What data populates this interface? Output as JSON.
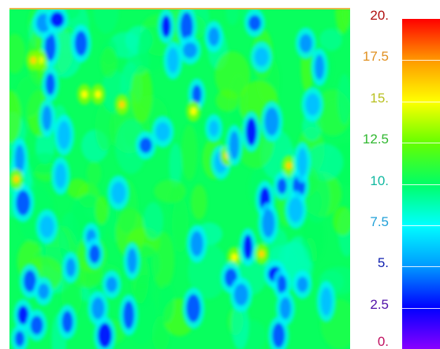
{
  "colors": {
    "background": "#ffffff",
    "top_edge": "#e6b84a",
    "base_field": "#3ee88a",
    "colormap": [
      "#8800ff",
      "#0000ff",
      "#0099ff",
      "#00ffff",
      "#00ff66",
      "#66ff00",
      "#ffff00",
      "#ff9900",
      "#ff0000"
    ]
  },
  "chart_data": {
    "type": "heatmap",
    "title": "",
    "xlabel": "",
    "ylabel": "",
    "grid": false,
    "legend": "colorbar-right",
    "colorbar": {
      "range": [
        0,
        20
      ],
      "ticks": [
        {
          "value": 20,
          "label": "20.",
          "color": "#b01010"
        },
        {
          "value": 17.5,
          "label": "17.5",
          "color": "#e09020"
        },
        {
          "value": 15,
          "label": "15.",
          "color": "#b8c020"
        },
        {
          "value": 12.5,
          "label": "12.5",
          "color": "#30b830"
        },
        {
          "value": 10,
          "label": "10.",
          "color": "#10b8a0"
        },
        {
          "value": 7.5,
          "label": "7.5",
          "color": "#20a0d8"
        },
        {
          "value": 5,
          "label": "5.",
          "color": "#1020b0"
        },
        {
          "value": 2.5,
          "label": "2.5",
          "color": "#5010a8"
        },
        {
          "value": 0,
          "label": "0.",
          "color": "#c01060"
        }
      ]
    },
    "field": {
      "base_value": 10.2,
      "low_spots_value_range": [
        2,
        6
      ],
      "high_spots_value_range": [
        14,
        17
      ],
      "spots": [
        {
          "x": 0.03,
          "y": 0.97,
          "v": 4
        },
        {
          "x": 0.04,
          "y": 0.9,
          "v": 3
        },
        {
          "x": 0.06,
          "y": 0.8,
          "v": 4
        },
        {
          "x": 0.04,
          "y": 0.57,
          "v": 4
        },
        {
          "x": 0.03,
          "y": 0.44,
          "v": 5
        },
        {
          "x": 0.1,
          "y": 0.83,
          "v": 5
        },
        {
          "x": 0.08,
          "y": 0.93,
          "v": 4
        },
        {
          "x": 0.11,
          "y": 0.64,
          "v": 6
        },
        {
          "x": 0.11,
          "y": 0.32,
          "v": 5
        },
        {
          "x": 0.12,
          "y": 0.11,
          "v": 4
        },
        {
          "x": 0.09,
          "y": 0.15,
          "v": 15
        },
        {
          "x": 0.1,
          "y": 0.04,
          "v": 5
        },
        {
          "x": 0.12,
          "y": 0.22,
          "v": 4
        },
        {
          "x": 0.15,
          "y": 0.49,
          "v": 6
        },
        {
          "x": 0.16,
          "y": 0.37,
          "v": 6
        },
        {
          "x": 0.14,
          "y": 0.03,
          "v": 3
        },
        {
          "x": 0.18,
          "y": 0.76,
          "v": 5
        },
        {
          "x": 0.17,
          "y": 0.92,
          "v": 4
        },
        {
          "x": 0.21,
          "y": 0.1,
          "v": 4
        },
        {
          "x": 0.22,
          "y": 0.25,
          "v": 15
        },
        {
          "x": 0.24,
          "y": 0.67,
          "v": 5
        },
        {
          "x": 0.25,
          "y": 0.72,
          "v": 4
        },
        {
          "x": 0.26,
          "y": 0.88,
          "v": 5
        },
        {
          "x": 0.28,
          "y": 0.96,
          "v": 3
        },
        {
          "x": 0.26,
          "y": 0.25,
          "v": 15
        },
        {
          "x": 0.3,
          "y": 0.81,
          "v": 5
        },
        {
          "x": 0.33,
          "y": 0.28,
          "v": 16
        },
        {
          "x": 0.32,
          "y": 0.54,
          "v": 6
        },
        {
          "x": 0.36,
          "y": 0.74,
          "v": 5
        },
        {
          "x": 0.35,
          "y": 0.9,
          "v": 4
        },
        {
          "x": 0.4,
          "y": 0.4,
          "v": 4
        },
        {
          "x": 0.45,
          "y": 0.36,
          "v": 6
        },
        {
          "x": 0.46,
          "y": 0.05,
          "v": 3
        },
        {
          "x": 0.48,
          "y": 0.15,
          "v": 6
        },
        {
          "x": 0.52,
          "y": 0.05,
          "v": 4
        },
        {
          "x": 0.53,
          "y": 0.12,
          "v": 5
        },
        {
          "x": 0.55,
          "y": 0.25,
          "v": 4
        },
        {
          "x": 0.54,
          "y": 0.3,
          "v": 15
        },
        {
          "x": 0.55,
          "y": 0.69,
          "v": 5
        },
        {
          "x": 0.54,
          "y": 0.88,
          "v": 4
        },
        {
          "x": 0.6,
          "y": 0.35,
          "v": 6
        },
        {
          "x": 0.6,
          "y": 0.08,
          "v": 5
        },
        {
          "x": 0.62,
          "y": 0.45,
          "v": 6
        },
        {
          "x": 0.64,
          "y": 0.43,
          "v": 16
        },
        {
          "x": 0.66,
          "y": 0.4,
          "v": 5
        },
        {
          "x": 0.66,
          "y": 0.73,
          "v": 15
        },
        {
          "x": 0.65,
          "y": 0.79,
          "v": 4
        },
        {
          "x": 0.68,
          "y": 0.84,
          "v": 5
        },
        {
          "x": 0.7,
          "y": 0.7,
          "v": 3
        },
        {
          "x": 0.71,
          "y": 0.36,
          "v": 3
        },
        {
          "x": 0.72,
          "y": 0.04,
          "v": 4
        },
        {
          "x": 0.74,
          "y": 0.14,
          "v": 6
        },
        {
          "x": 0.74,
          "y": 0.72,
          "v": 16
        },
        {
          "x": 0.75,
          "y": 0.56,
          "v": 3
        },
        {
          "x": 0.76,
          "y": 0.63,
          "v": 5
        },
        {
          "x": 0.78,
          "y": 0.78,
          "v": 3
        },
        {
          "x": 0.8,
          "y": 0.81,
          "v": 4
        },
        {
          "x": 0.81,
          "y": 0.88,
          "v": 5
        },
        {
          "x": 0.79,
          "y": 0.96,
          "v": 4
        },
        {
          "x": 0.77,
          "y": 0.33,
          "v": 5
        },
        {
          "x": 0.8,
          "y": 0.52,
          "v": 4
        },
        {
          "x": 0.82,
          "y": 0.46,
          "v": 16
        },
        {
          "x": 0.85,
          "y": 0.52,
          "v": 4
        },
        {
          "x": 0.84,
          "y": 0.59,
          "v": 6
        },
        {
          "x": 0.86,
          "y": 0.45,
          "v": 6
        },
        {
          "x": 0.86,
          "y": 0.81,
          "v": 5
        },
        {
          "x": 0.87,
          "y": 0.1,
          "v": 5
        },
        {
          "x": 0.89,
          "y": 0.28,
          "v": 6
        },
        {
          "x": 0.91,
          "y": 0.17,
          "v": 5
        },
        {
          "x": 0.93,
          "y": 0.86,
          "v": 6
        },
        {
          "x": 0.02,
          "y": 0.5,
          "v": 16
        },
        {
          "x": 0.07,
          "y": 0.15,
          "v": 16
        }
      ]
    }
  }
}
